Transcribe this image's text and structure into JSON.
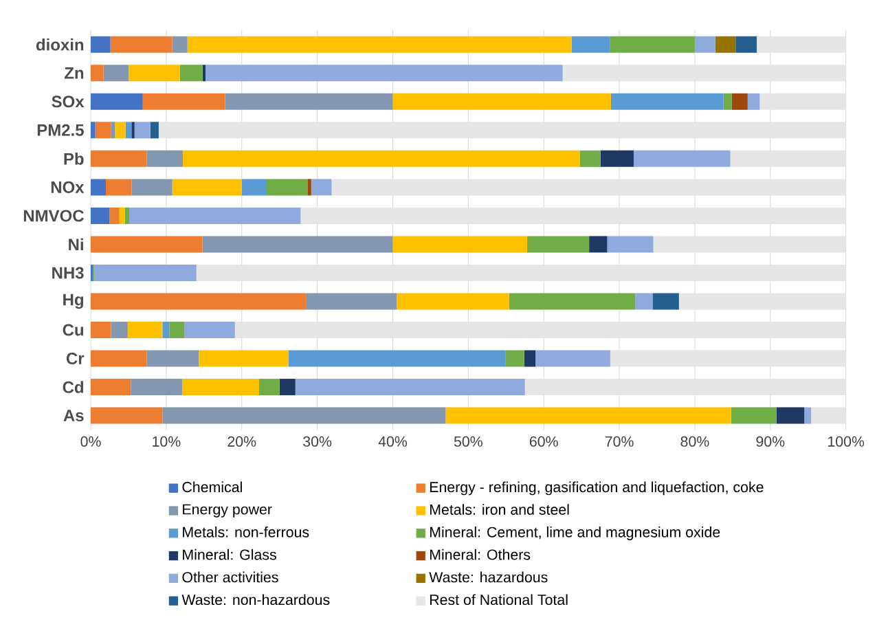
{
  "chart_data": {
    "type": "bar",
    "orientation": "horizontal",
    "stacked": true,
    "categories": [
      "dioxin",
      "Zn",
      "SOx",
      "PM2.5",
      "Pb",
      "NOx",
      "NMVOC",
      "Ni",
      "NH3",
      "Hg",
      "Cu",
      "Cr",
      "Cd",
      "As"
    ],
    "series": [
      {
        "name": "Chemical",
        "color": "#4472c4",
        "values": [
          2.6,
          0,
          6.9,
          0.6,
          0,
          2.0,
          2.5,
          0,
          0.3,
          null,
          0,
          0,
          0,
          0
        ]
      },
      {
        "name": "Energy - refining, gasification and liquefaction, coke",
        "color": "#ed7d31",
        "values": [
          8.2,
          1.7,
          10.9,
          2.1,
          7.4,
          3.4,
          1.3,
          14.8,
          0,
          28.5,
          2.7,
          7.4,
          5.3,
          9.5
        ]
      },
      {
        "name": "Energy power",
        "color": "#8497b0",
        "values": [
          2.0,
          3.3,
          22.2,
          0.5,
          4.8,
          5.4,
          0,
          25.2,
          0,
          12.0,
          2.2,
          6.9,
          6.8,
          37.5
        ]
      },
      {
        "name": "Metals: iron and steel",
        "color": "#ffc000",
        "values": [
          50.9,
          6.8,
          28.9,
          1.4,
          52.6,
          9.2,
          0.7,
          17.8,
          0,
          14.9,
          4.6,
          11.9,
          10.2,
          37.8
        ]
      },
      {
        "name": "Metals: non-ferrous",
        "color": "#5b9bd5",
        "values": [
          5.1,
          0,
          14.9,
          0.8,
          0,
          3.3,
          0,
          0,
          0,
          0,
          0.9,
          28.7,
          0,
          0
        ]
      },
      {
        "name": "Mineral: Cement, lime and magnesium oxide",
        "color": "#70ad47",
        "values": [
          11.2,
          3.0,
          1.1,
          0,
          2.7,
          5.4,
          0.6,
          8.2,
          0.2,
          16.7,
          2.0,
          2.5,
          2.7,
          6.0
        ]
      },
      {
        "name": "Mineral: Glass",
        "color": "#203864",
        "values": [
          0,
          0.4,
          0,
          0.4,
          4.4,
          0,
          0,
          2.4,
          0,
          0,
          0,
          1.5,
          2.1,
          3.7
        ]
      },
      {
        "name": "Mineral: Others",
        "color": "#9e480e",
        "values": [
          0,
          0,
          2.1,
          0,
          0,
          0.5,
          0,
          0,
          0,
          0,
          0,
          0,
          0,
          0
        ]
      },
      {
        "name": "Other activities",
        "color": "#8faadc",
        "values": [
          2.7,
          47.3,
          1.6,
          2.1,
          12.8,
          2.7,
          22.7,
          6.1,
          13.5,
          2.3,
          6.7,
          9.9,
          30.4,
          0.9
        ]
      },
      {
        "name": "Waste: hazardous",
        "color": "#997300",
        "values": [
          2.7,
          0,
          0,
          0,
          0,
          0,
          0,
          0,
          0,
          0,
          0,
          0,
          0,
          0
        ]
      },
      {
        "name": "Waste: non-hazardous",
        "color": "#255e91",
        "values": [
          2.8,
          0,
          0,
          1.1,
          0,
          0,
          0,
          0,
          0,
          3.5,
          0,
          0,
          0,
          0
        ]
      },
      {
        "name": "Rest of National Total",
        "color": "#e7e6e6",
        "values": [
          11.8,
          37.5,
          11.4,
          91.0,
          15.3,
          68.1,
          72.2,
          25.5,
          86.0,
          22.1,
          80.9,
          31.2,
          42.5,
          4.6
        ]
      }
    ],
    "xlim": [
      0,
      100
    ],
    "xticks": [
      {
        "value": 0,
        "label": "0%"
      },
      {
        "value": 10,
        "label": "10%"
      },
      {
        "value": 20,
        "label": "20%"
      },
      {
        "value": 30,
        "label": "30%"
      },
      {
        "value": 40,
        "label": "40%"
      },
      {
        "value": 50,
        "label": "50%"
      },
      {
        "value": 60,
        "label": "60%"
      },
      {
        "value": 70,
        "label": "70%"
      },
      {
        "value": 80,
        "label": "80%"
      },
      {
        "value": 90,
        "label": "90%"
      },
      {
        "value": 100,
        "label": "100%"
      }
    ],
    "grid": "x",
    "legend": "bottom"
  }
}
